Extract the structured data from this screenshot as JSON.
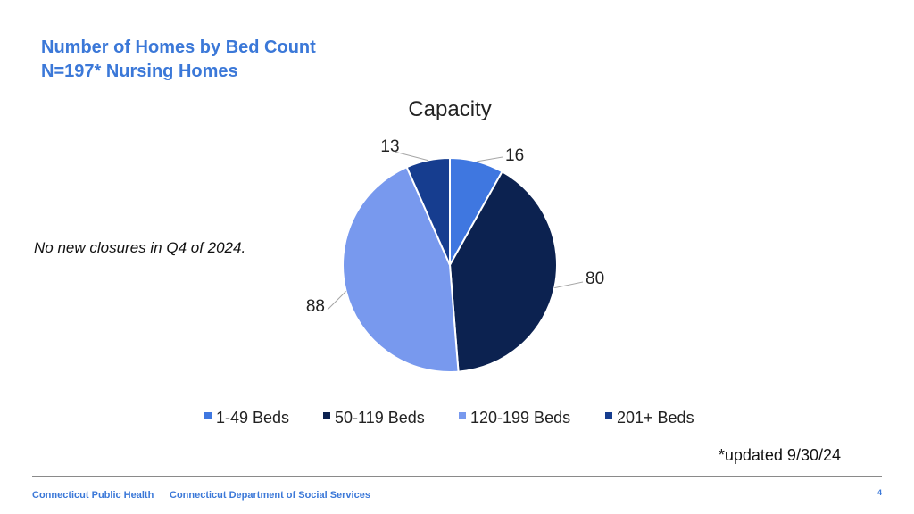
{
  "header": {
    "title_line1": "Number of Homes by Bed Count",
    "title_line2": "N=197* Nursing Homes"
  },
  "note": "No new closures in Q4 of 2024.",
  "footnote": "*updated 9/30/24",
  "footer": {
    "left": "Connecticut Public Health",
    "middle": "Connecticut Department of Social Services",
    "page_number": "4"
  },
  "chart_data": {
    "type": "pie",
    "title": "Capacity",
    "categories": [
      "1-49 Beds",
      "50-119 Beds",
      "120-199 Beds",
      "201+ Beds"
    ],
    "values": [
      16,
      80,
      88,
      13
    ],
    "colors": [
      "#3f77e0",
      "#0c2250",
      "#7899ee",
      "#163d8f"
    ],
    "legend": "bottom"
  }
}
